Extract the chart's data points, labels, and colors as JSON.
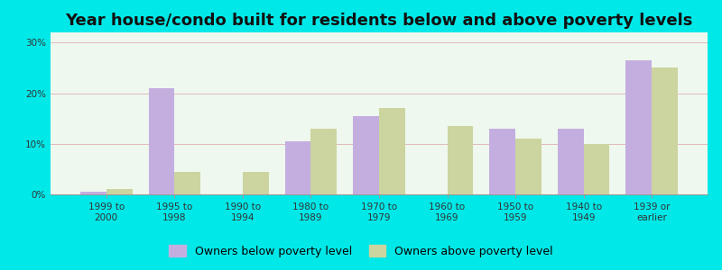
{
  "title": "Year house/condo built for residents below and above poverty levels",
  "categories": [
    "1999 to\n2000",
    "1995 to\n1998",
    "1990 to\n1994",
    "1980 to\n1989",
    "1970 to\n1979",
    "1960 to\n1969",
    "1950 to\n1959",
    "1940 to\n1949",
    "1939 or\nearlier"
  ],
  "below_poverty": [
    0.5,
    21.0,
    0.0,
    10.5,
    15.5,
    0.0,
    13.0,
    13.0,
    26.5
  ],
  "above_poverty": [
    1.0,
    4.5,
    4.5,
    13.0,
    17.0,
    13.5,
    11.0,
    10.0,
    25.0
  ],
  "below_color": "#c4aee0",
  "above_color": "#ccd4a0",
  "outer_bg": "#00e8e8",
  "plot_bg": "#eef8ee",
  "ylim": [
    0,
    32
  ],
  "yticks": [
    0,
    10,
    20,
    30
  ],
  "title_fontsize": 13,
  "tick_fontsize": 7.5,
  "legend_fontsize": 9,
  "bar_width": 0.38,
  "legend_below": "Owners below poverty level",
  "legend_above": "Owners above poverty level"
}
